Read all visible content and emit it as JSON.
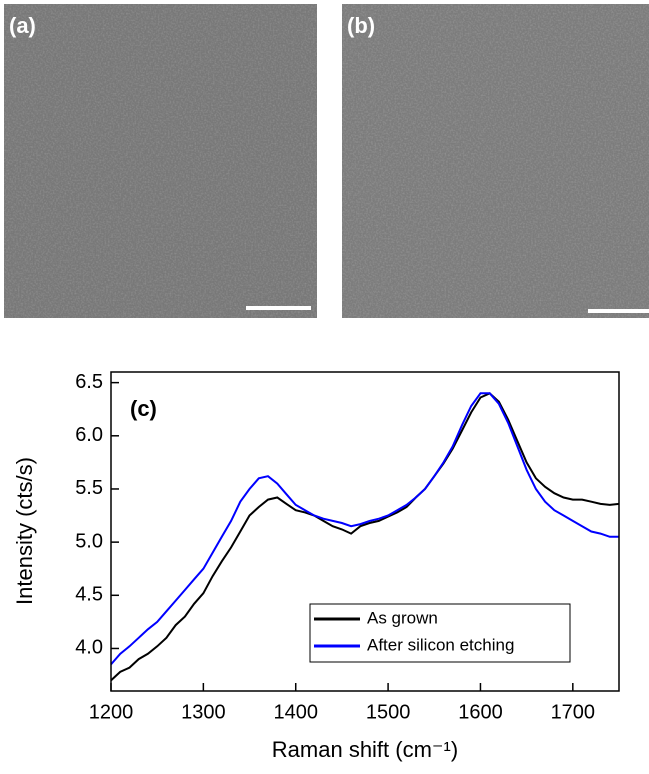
{
  "panels": [
    {
      "label": "(a)"
    },
    {
      "label": "(b)"
    }
  ],
  "chart_data": {
    "type": "line",
    "annotation": "(c)",
    "xlabel": "Raman shift (cm⁻¹)",
    "ylabel": "Intensity (cts/s)",
    "x": [
      1200,
      1210,
      1220,
      1230,
      1240,
      1250,
      1260,
      1270,
      1280,
      1290,
      1300,
      1310,
      1320,
      1330,
      1340,
      1350,
      1360,
      1370,
      1380,
      1390,
      1400,
      1410,
      1420,
      1430,
      1440,
      1450,
      1460,
      1470,
      1480,
      1490,
      1500,
      1510,
      1520,
      1530,
      1540,
      1550,
      1560,
      1570,
      1580,
      1590,
      1600,
      1610,
      1620,
      1630,
      1640,
      1650,
      1660,
      1670,
      1680,
      1690,
      1700,
      1710,
      1720,
      1730,
      1740,
      1750
    ],
    "series": [
      {
        "name": "As grown",
        "color": "#000000",
        "values": [
          3.7,
          3.78,
          3.82,
          3.9,
          3.95,
          4.02,
          4.1,
          4.22,
          4.3,
          4.42,
          4.52,
          4.68,
          4.82,
          4.95,
          5.1,
          5.25,
          5.33,
          5.4,
          5.42,
          5.36,
          5.3,
          5.28,
          5.25,
          5.2,
          5.15,
          5.12,
          5.08,
          5.15,
          5.18,
          5.2,
          5.24,
          5.28,
          5.33,
          5.42,
          5.5,
          5.62,
          5.74,
          5.88,
          6.05,
          6.22,
          6.36,
          6.4,
          6.32,
          6.15,
          5.95,
          5.75,
          5.6,
          5.52,
          5.46,
          5.42,
          5.4,
          5.4,
          5.38,
          5.36,
          5.35,
          5.36
        ]
      },
      {
        "name": "After silicon etching",
        "color": "#0000ff",
        "values": [
          3.85,
          3.95,
          4.02,
          4.1,
          4.18,
          4.25,
          4.35,
          4.45,
          4.55,
          4.65,
          4.75,
          4.9,
          5.05,
          5.2,
          5.38,
          5.5,
          5.6,
          5.62,
          5.55,
          5.45,
          5.35,
          5.3,
          5.25,
          5.22,
          5.2,
          5.18,
          5.15,
          5.17,
          5.2,
          5.22,
          5.25,
          5.3,
          5.35,
          5.42,
          5.5,
          5.62,
          5.75,
          5.9,
          6.1,
          6.28,
          6.4,
          6.4,
          6.3,
          6.12,
          5.9,
          5.68,
          5.5,
          5.38,
          5.3,
          5.25,
          5.2,
          5.15,
          5.1,
          5.08,
          5.05,
          5.05
        ]
      }
    ],
    "xlim": [
      1200,
      1750
    ],
    "xticks": [
      1200,
      1300,
      1400,
      1500,
      1600,
      1700
    ],
    "ylim": [
      3.6,
      6.6
    ],
    "yticks": [
      {
        "value": 4,
        "label": "4.0"
      },
      4.5,
      {
        "value": 5,
        "label": "5.0"
      },
      5.5,
      {
        "value": 6,
        "label": "6.0"
      },
      6.5
    ],
    "legend": "lower right"
  }
}
